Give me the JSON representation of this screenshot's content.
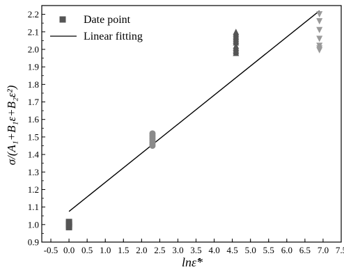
{
  "chart_data": {
    "type": "scatter",
    "title": "",
    "xlabel": "lnε̇*",
    "ylabel": "σ/(A₁+B₁ε+B₂ε²)",
    "xlim": [
      -0.75,
      7.5
    ],
    "ylim": [
      0.9,
      2.25
    ],
    "x_ticks": [
      -0.5,
      0.0,
      0.5,
      1.0,
      1.5,
      2.0,
      2.5,
      3.0,
      3.5,
      4.0,
      4.5,
      5.0,
      5.5,
      6.0,
      6.5,
      7.0,
      7.5
    ],
    "x_tick_labels": [
      "-0.5",
      "0.0",
      "0.5",
      "1.0",
      "1.5",
      "2.0",
      "2.5",
      "3.0",
      "3.5",
      "4.0",
      "4.5",
      "5.0",
      "5.5",
      "6.0",
      "6.5",
      "7.0",
      "7.5"
    ],
    "y_ticks": [
      0.9,
      1.0,
      1.1,
      1.2,
      1.3,
      1.4,
      1.5,
      1.6,
      1.7,
      1.8,
      1.9,
      2.0,
      2.1,
      2.2
    ],
    "y_tick_labels": [
      "0.9",
      "1.0",
      "1.1",
      "1.2",
      "1.3",
      "1.4",
      "1.5",
      "1.6",
      "1.7",
      "1.8",
      "1.9",
      "2.0",
      "2.1",
      "2.2"
    ],
    "grid": false,
    "legend_position": "top-left",
    "legend": [
      {
        "label": "Date point",
        "type": "marker"
      },
      {
        "label": "Linear fitting",
        "type": "line"
      }
    ],
    "series": [
      {
        "name": "Date point",
        "kind": "points",
        "groups": [
          {
            "marker": "square",
            "color": "#555555",
            "x": [
              0,
              0,
              0,
              0
            ],
            "y": [
              0.985,
              0.995,
              1.005,
              1.015
            ]
          },
          {
            "marker": "circle",
            "color": "#8a8a8a",
            "x": [
              2.3,
              2.3,
              2.3,
              2.3,
              2.3,
              2.3,
              2.3,
              2.3
            ],
            "y": [
              1.45,
              1.46,
              1.47,
              1.48,
              1.49,
              1.5,
              1.51,
              1.52
            ]
          },
          {
            "marker": "triangle-up",
            "color": "#555555",
            "x": [
              4.6,
              4.6,
              4.6,
              4.6,
              4.6,
              4.6,
              4.6,
              4.6,
              4.6,
              4.6,
              4.6,
              4.6
            ],
            "y": [
              1.98,
              1.99,
              2.0,
              2.01,
              2.02,
              2.04,
              2.05,
              2.06,
              2.07,
              2.08,
              2.09,
              2.1
            ]
          },
          {
            "marker": "triangle-down",
            "color": "#9a9a9a",
            "x": [
              6.9,
              6.9,
              6.9,
              6.9,
              6.9,
              6.9,
              6.9
            ],
            "y": [
              1.995,
              2.005,
              2.02,
              2.06,
              2.11,
              2.16,
              2.2
            ]
          }
        ]
      },
      {
        "name": "Linear fitting",
        "kind": "line",
        "color": "#000000",
        "x": [
          0.0,
          6.9
        ],
        "y": [
          1.075,
          2.22
        ]
      }
    ]
  }
}
